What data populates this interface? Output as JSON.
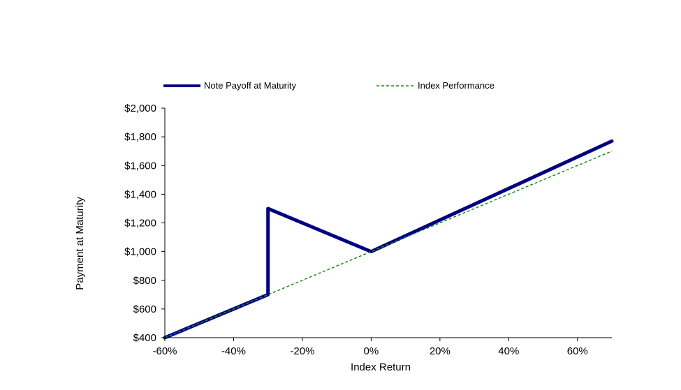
{
  "chart_data": {
    "type": "line",
    "title": "",
    "xlabel": "Index Return",
    "ylabel": "Payment at Maturity",
    "xlim": [
      -60,
      70
    ],
    "ylim": [
      400,
      2000
    ],
    "grid": false,
    "legend_position": "top",
    "x_ticks": [
      {
        "value": -60,
        "label": "-60%"
      },
      {
        "value": -40,
        "label": "-40%"
      },
      {
        "value": -20,
        "label": "-20%"
      },
      {
        "value": 0,
        "label": "0%"
      },
      {
        "value": 20,
        "label": "20%"
      },
      {
        "value": 40,
        "label": "40%"
      },
      {
        "value": 60,
        "label": "60%"
      }
    ],
    "y_ticks": [
      {
        "value": 400,
        "label": "$400"
      },
      {
        "value": 600,
        "label": "$600"
      },
      {
        "value": 800,
        "label": "$800"
      },
      {
        "value": 1000,
        "label": "$1,000"
      },
      {
        "value": 1200,
        "label": "$1,200"
      },
      {
        "value": 1400,
        "label": "$1,400"
      },
      {
        "value": 1600,
        "label": "$1,600"
      },
      {
        "value": 1800,
        "label": "$1,800"
      },
      {
        "value": 2000,
        "label": "$2,000"
      }
    ],
    "series": [
      {
        "name": "Note Payoff at Maturity",
        "color": "#000080",
        "style": "solid",
        "points": [
          [
            -60,
            400
          ],
          [
            -30,
            700
          ],
          [
            -30,
            1300
          ],
          [
            0,
            1000
          ],
          [
            70,
            1770
          ]
        ]
      },
      {
        "name": "Index Performance",
        "color": "#1a8c1a",
        "style": "dashed",
        "points": [
          [
            -60,
            400
          ],
          [
            70,
            1700
          ]
        ]
      }
    ]
  }
}
